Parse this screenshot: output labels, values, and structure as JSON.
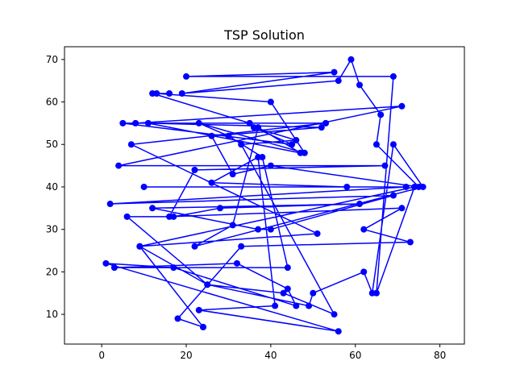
{
  "chart_data": {
    "type": "line",
    "title": "TSP Solution",
    "xlabel": "",
    "ylabel": "",
    "xlim": [
      -8.8,
      85.8
    ],
    "ylim": [
      3.0,
      73.0
    ],
    "xticks": [
      0,
      20,
      40,
      60,
      80
    ],
    "yticks": [
      10,
      20,
      30,
      40,
      50,
      60,
      70
    ],
    "grid": false,
    "legend": "none",
    "color": "#0000ff",
    "marker": "circle",
    "series": [
      {
        "points": [
          [
            24,
            7
          ],
          [
            18,
            9
          ],
          [
            33,
            26
          ],
          [
            73,
            27
          ],
          [
            62,
            30
          ],
          [
            71,
            35
          ],
          [
            16,
            33
          ],
          [
            22,
            44
          ],
          [
            67,
            45
          ],
          [
            4,
            45
          ],
          [
            71,
            59
          ],
          [
            8,
            55
          ],
          [
            35,
            55
          ],
          [
            12,
            62
          ],
          [
            16,
            62
          ],
          [
            13,
            62
          ],
          [
            40,
            60
          ],
          [
            48,
            48
          ],
          [
            23,
            55
          ],
          [
            30,
            52
          ],
          [
            38,
            47
          ],
          [
            44,
            21
          ],
          [
            3,
            21
          ],
          [
            32,
            22
          ],
          [
            44,
            16
          ],
          [
            46,
            12
          ],
          [
            17,
            21
          ],
          [
            1,
            22
          ],
          [
            56,
            6
          ],
          [
            23,
            11
          ],
          [
            41,
            12
          ],
          [
            37,
            47
          ],
          [
            26,
            41
          ],
          [
            58,
            40
          ],
          [
            10,
            40
          ],
          [
            72,
            40
          ],
          [
            2,
            36
          ],
          [
            69,
            38
          ],
          [
            40,
            30
          ],
          [
            37,
            30
          ],
          [
            12,
            35
          ],
          [
            61,
            36
          ],
          [
            28,
            35
          ],
          [
            17,
            33
          ],
          [
            6,
            33
          ],
          [
            25,
            17
          ],
          [
            43,
            15
          ],
          [
            55,
            10
          ],
          [
            33,
            50
          ],
          [
            46,
            51
          ],
          [
            36,
            54
          ],
          [
            45,
            50
          ],
          [
            5,
            55
          ],
          [
            53,
            55
          ],
          [
            7,
            50
          ],
          [
            51,
            29
          ],
          [
            9,
            26
          ],
          [
            74,
            40
          ],
          [
            65,
            15
          ],
          [
            69,
            66
          ],
          [
            20,
            66
          ],
          [
            55,
            67
          ],
          [
            19,
            62
          ],
          [
            56,
            65
          ],
          [
            59,
            70
          ],
          [
            61,
            64
          ],
          [
            66,
            57
          ],
          [
            65,
            50
          ],
          [
            75,
            40
          ],
          [
            40,
            45
          ],
          [
            31,
            43
          ],
          [
            26,
            52
          ],
          [
            52,
            54
          ],
          [
            11,
            55
          ],
          [
            47,
            48
          ],
          [
            37,
            54
          ],
          [
            31,
            31
          ],
          [
            22,
            26
          ],
          [
            76,
            40
          ],
          [
            69,
            50
          ],
          [
            64,
            15
          ],
          [
            62,
            20
          ],
          [
            50,
            15
          ],
          [
            49,
            12
          ],
          [
            25,
            17
          ],
          [
            9,
            26
          ],
          [
            24,
            7
          ]
        ]
      }
    ]
  }
}
